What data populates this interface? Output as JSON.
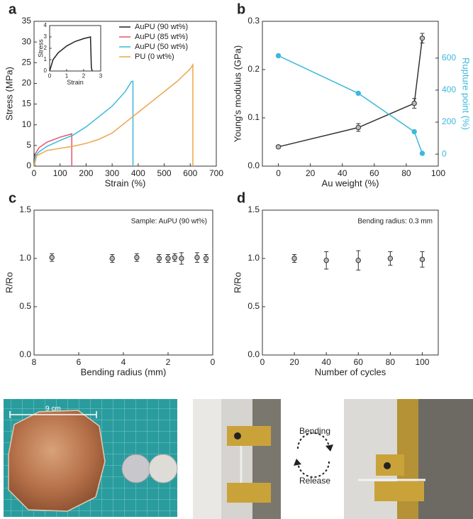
{
  "chart_data": [
    {
      "type": "line",
      "panel": "a",
      "xlabel": "Strain (%)",
      "ylabel": "Stress (MPa)",
      "xlim": [
        0,
        700
      ],
      "xticks": [
        0,
        100,
        200,
        300,
        400,
        500,
        600,
        700
      ],
      "ylim": [
        0,
        35
      ],
      "yticks": [
        0,
        5,
        10,
        15,
        20,
        25,
        30,
        35
      ],
      "legend": "upper right",
      "series": [
        {
          "name": "AuPU (90 wt%)",
          "color": "#222222",
          "x": [
            0,
            0.2,
            0.5,
            1,
            1.5,
            2,
            2.4,
            2.45,
            2.5
          ],
          "values": [
            0,
            1,
            1.6,
            2.2,
            2.6,
            2.85,
            3.0,
            0.3,
            0
          ]
        },
        {
          "name": "AuPU (85 wt%)",
          "color": "#e8536b",
          "x": [
            0,
            5,
            20,
            50,
            100,
            140,
            145,
            145
          ],
          "values": [
            0,
            3,
            4.5,
            5.8,
            7,
            7.7,
            7.8,
            0
          ]
        },
        {
          "name": "AuPU (50 wt%)",
          "color": "#3cb8dc",
          "x": [
            0,
            5,
            20,
            50,
            100,
            150,
            200,
            250,
            300,
            350,
            375,
            380,
            380
          ],
          "values": [
            0,
            2.5,
            3.5,
            4.8,
            6.2,
            7.5,
            9.5,
            12,
            14.5,
            18,
            20.5,
            20.5,
            0
          ]
        },
        {
          "name": "PU (0 wt%)",
          "color": "#eba64a",
          "x": [
            0,
            10,
            50,
            100,
            150,
            200,
            250,
            300,
            350,
            400,
            450,
            500,
            550,
            600,
            610,
            610
          ],
          "values": [
            0,
            2.5,
            3.8,
            4.3,
            4.8,
            5.5,
            6.5,
            8,
            10.5,
            13,
            15.5,
            18,
            20.5,
            23.5,
            24.5,
            0
          ]
        }
      ]
    },
    {
      "type": "line",
      "xlabel": "Strain",
      "ylabel": "Stress",
      "xlim": [
        0,
        3
      ],
      "xticks": [
        0,
        1,
        2,
        3
      ],
      "ylim": [
        0,
        4
      ],
      "yticks": [
        0,
        1,
        2,
        3,
        4
      ],
      "series": [
        {
          "color": "#222222",
          "x": [
            0,
            0.2,
            0.5,
            1,
            1.5,
            2,
            2.4,
            2.45,
            2.5
          ],
          "values": [
            0,
            1,
            1.6,
            2.2,
            2.6,
            2.85,
            3.0,
            0.3,
            0
          ]
        }
      ]
    },
    {
      "type": "line",
      "panel": "b",
      "xlabel": "Au weight (%)",
      "ylabel": "Young's modulus (GPa)",
      "y2label": "Rupture point (%)",
      "xlim": [
        -10,
        100
      ],
      "xticks": [
        0,
        20,
        40,
        60,
        80,
        100
      ],
      "ylim": [
        0,
        0.3
      ],
      "yticks": [
        {
          "value": 0,
          "label": "0.0"
        },
        0.1,
        0.2,
        0.3
      ],
      "y2lim": [
        -75,
        830
      ],
      "y2ticks": [
        0,
        200,
        400,
        600
      ],
      "markers": true,
      "x": [
        0,
        50,
        85,
        90
      ],
      "series": [
        {
          "color": "#333333",
          "values": [
            0.04,
            0.08,
            0.13,
            0.265
          ],
          "errors": [
            0.003,
            0.008,
            0.01,
            0.01
          ]
        },
        {
          "color": "#3cb8dc",
          "axis": "y2",
          "values": [
            615,
            380,
            140,
            5
          ]
        }
      ]
    },
    {
      "type": "scatter",
      "panel": "c",
      "xlabel": "Bending radius (mm)",
      "ylabel": "R/Ro",
      "annotation": "Sample: AuPU (90 wt%)",
      "xlim": [
        8,
        0
      ],
      "xticks": [
        8,
        6,
        4,
        2,
        0
      ],
      "ylim": [
        0,
        1.5
      ],
      "yticks": [
        {
          "value": 0,
          "label": "0.0"
        },
        0.5,
        {
          "value": 1,
          "label": "1.0"
        },
        1.5
      ],
      "series": [
        {
          "color": "#555555",
          "x": [
            7.2,
            4.5,
            3.4,
            2.4,
            2.0,
            1.7,
            1.4,
            0.7,
            0.3
          ],
          "values": [
            1.01,
            1.0,
            1.01,
            1.0,
            1.0,
            1.01,
            1.0,
            1.01,
            1.0
          ],
          "errors": [
            0.04,
            0.04,
            0.04,
            0.04,
            0.04,
            0.04,
            0.06,
            0.05,
            0.04
          ]
        }
      ]
    },
    {
      "type": "scatter",
      "panel": "d",
      "xlabel": "Number of cycles",
      "ylabel": "R/Ro",
      "annotation": "Bending radius: 0.3 mm",
      "xlim": [
        0,
        110
      ],
      "xticks": [
        0,
        20,
        40,
        60,
        80,
        100
      ],
      "ylim": [
        0,
        1.5
      ],
      "yticks": [
        {
          "value": 0,
          "label": "0.0"
        },
        0.5,
        {
          "value": 1,
          "label": "1.0"
        },
        1.5
      ],
      "series": [
        {
          "color": "#555555",
          "x": [
            20,
            40,
            60,
            80,
            100
          ],
          "values": [
            1.0,
            0.98,
            0.98,
            1.0,
            0.99
          ],
          "errors": [
            0.04,
            0.09,
            0.1,
            0.07,
            0.08
          ]
        }
      ]
    }
  ],
  "photos": {
    "scale_label": "9 cm",
    "arrow_top": "Bending",
    "arrow_bottom": "Release"
  }
}
